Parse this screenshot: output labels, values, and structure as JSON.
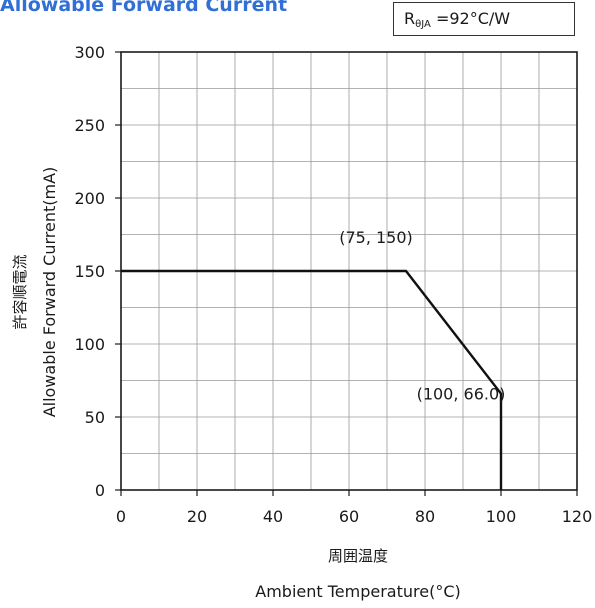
{
  "header": {
    "title": "Allowable Forward Current",
    "rtheta_prefix": "R",
    "rtheta_sub": "θJA",
    "rtheta_value": " =92°C/W"
  },
  "chart_data": {
    "type": "line",
    "title": "Allowable Forward Current",
    "xlabel_jp": "周囲温度",
    "xlabel": "Ambient Temperature(°C)",
    "ylabel_jp": "許容順電流",
    "ylabel": "Allowable Forward Current(mA)",
    "xlim": [
      0,
      120
    ],
    "ylim": [
      0,
      300
    ],
    "x_ticks": [
      0,
      20,
      40,
      60,
      80,
      100,
      120
    ],
    "y_ticks": [
      0,
      50,
      100,
      150,
      200,
      250,
      300
    ],
    "x_tick_labels": [
      "0",
      "20",
      "40",
      "60",
      "80",
      "100",
      "120"
    ],
    "y_tick_labels": [
      "0",
      "50",
      "100",
      "150",
      "200",
      "250",
      "300"
    ],
    "grid": true,
    "series": [
      {
        "x": [
          0,
          75,
          100,
          100
        ],
        "y": [
          150,
          150,
          66.0,
          0
        ]
      }
    ],
    "annotations": [
      {
        "text": "(75, 150)",
        "x": 75,
        "y": 150
      },
      {
        "text": "(100, 66.0)",
        "x": 100,
        "y": 66.0
      }
    ]
  }
}
